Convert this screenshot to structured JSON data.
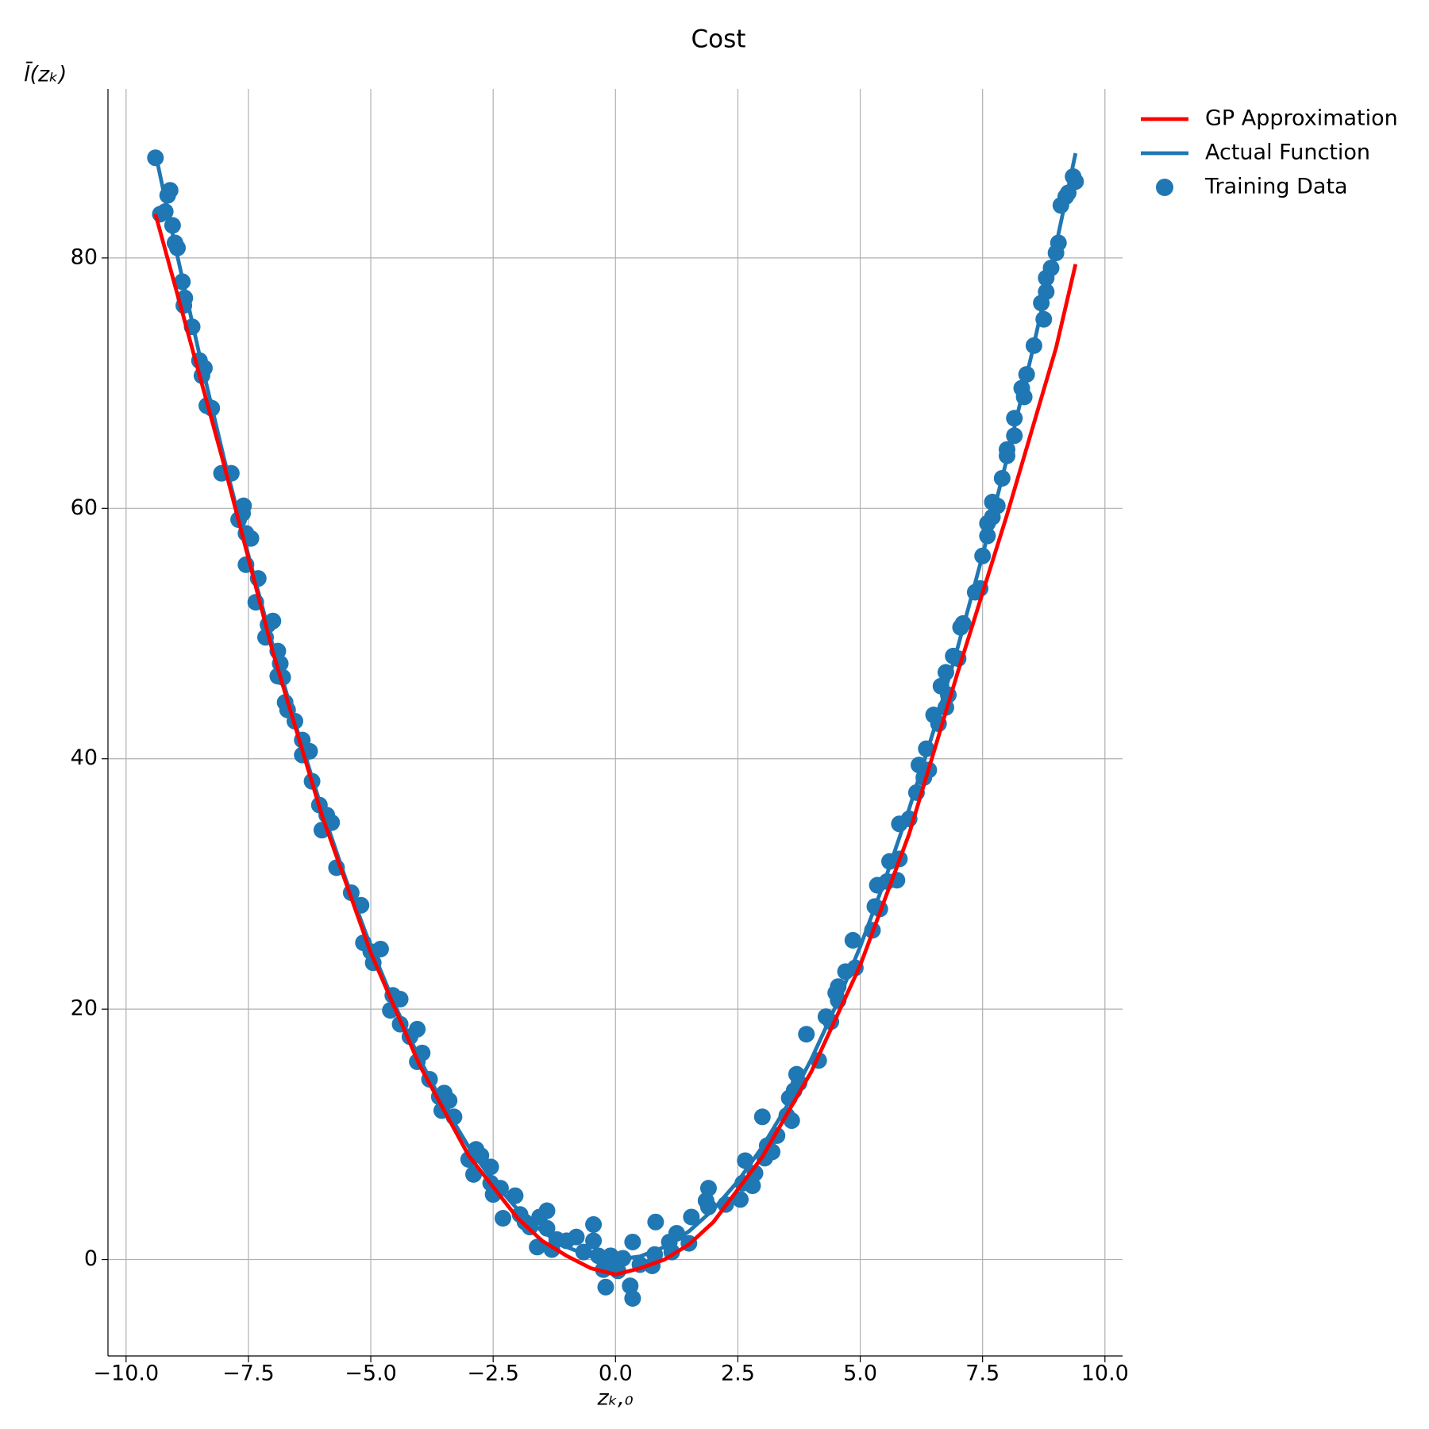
{
  "chart_data": {
    "type": "line",
    "title": "Cost",
    "xlabel": "zₖ,₀",
    "ylabel": "l̄(zₖ)",
    "xlim": [
      -10.37,
      10.36
    ],
    "ylim": [
      -7.7,
      93.5
    ],
    "xticks": [
      {
        "value": -10,
        "label": "−10.0"
      },
      {
        "value": -7.5,
        "label": "−7.5"
      },
      {
        "value": -5,
        "label": "−5.0"
      },
      {
        "value": -2.5,
        "label": "−2.5"
      },
      {
        "value": 0,
        "label": "0.0"
      },
      2.5,
      {
        "value": 5,
        "label": "5.0"
      },
      7.5,
      {
        "value": 10,
        "label": "10.0"
      }
    ],
    "yticks": [
      0,
      20,
      40,
      60,
      80
    ],
    "grid": true,
    "legend": "outside-right",
    "series": [
      {
        "name": "GP Approximation",
        "kind": "line",
        "color": "#ff0000",
        "x": [
          -9.4,
          -8,
          -7,
          -6,
          -5,
          -4,
          -3,
          -2,
          -1.5,
          -1,
          -0.5,
          0,
          0.5,
          1,
          1.5,
          2,
          3,
          4,
          5,
          6,
          7,
          8,
          9,
          9.4
        ],
        "values": [
          83.5,
          63.5,
          48.5,
          35.5,
          24.5,
          15.5,
          8.3,
          3.3,
          1.5,
          0.3,
          -0.7,
          -1.2,
          -0.7,
          0,
          1.2,
          3,
          8.2,
          15,
          23.5,
          34,
          47,
          59.5,
          72.8,
          79.5
        ]
      },
      {
        "name": "Actual Function",
        "kind": "line",
        "color": "#1f77b4",
        "x": [
          -9.4,
          -9,
          -8.5,
          -8,
          -7.5,
          -7,
          -6.5,
          -6,
          -5.5,
          -5,
          -4.5,
          -4,
          -3.5,
          -3,
          -2.5,
          -2,
          -1.5,
          -1,
          -0.5,
          0,
          0.5,
          1,
          1.5,
          2,
          2.5,
          3,
          3.5,
          4,
          4.5,
          5,
          5.5,
          6,
          6.5,
          7,
          7.5,
          8,
          8.5,
          9,
          9.4
        ],
        "values": [
          88.36,
          81,
          72.25,
          64,
          56.25,
          49,
          42.25,
          36,
          30.25,
          25,
          20.25,
          16,
          12.25,
          9,
          6.25,
          4,
          2.25,
          1,
          0.25,
          0,
          0.25,
          1,
          2.25,
          4,
          6.25,
          9,
          12.25,
          16,
          20.25,
          25,
          30.25,
          36,
          42.25,
          49,
          56.25,
          64,
          72.25,
          81,
          88.36
        ]
      },
      {
        "name": "Training Data",
        "kind": "scatter",
        "color": "#1f77b4",
        "x": [
          -9.4,
          -9.3,
          -9.2,
          -9.15,
          -9.1,
          -9.05,
          -9.0,
          -8.95,
          -8.85,
          -8.8,
          -8.82,
          -8.65,
          -8.5,
          -8.45,
          -8.4,
          -8.35,
          -8.25,
          -8.05,
          -7.85,
          -7.7,
          -7.6,
          -7.62,
          -7.55,
          -7.55,
          -7.45,
          -7.3,
          -7.35,
          -7.15,
          -7.1,
          -7.0,
          -6.9,
          -6.85,
          -6.9,
          -6.8,
          -6.75,
          -6.7,
          -6.55,
          -6.4,
          -6.4,
          -6.25,
          -6.2,
          -6.05,
          -6.0,
          -5.9,
          -5.8,
          -5.7,
          -5.4,
          -5.2,
          -5.15,
          -5.0,
          -4.95,
          -4.8,
          -4.6,
          -4.55,
          -4.4,
          -4.4,
          -4.2,
          -4.05,
          -4.05,
          -3.95,
          -3.8,
          -3.6,
          -3.55,
          -3.5,
          -3.4,
          -3.3,
          -3.0,
          -2.9,
          -2.85,
          -2.75,
          -2.55,
          -2.55,
          -2.5,
          -2.35,
          -2.3,
          -2.05,
          -1.95,
          -1.85,
          -1.75,
          -1.6,
          -1.55,
          -1.4,
          -1.4,
          -1.3,
          -1.2,
          -1.0,
          -0.8,
          -0.65,
          -0.45,
          -0.45,
          -0.35,
          -0.25,
          -0.2,
          -0.1,
          -0.05,
          0.05,
          0.15,
          0.3,
          0.35,
          0.35,
          0.5,
          0.75,
          0.8,
          0.82,
          1.1,
          1.15,
          1.25,
          1.5,
          1.55,
          1.85,
          1.9,
          1.9,
          2.25,
          2.55,
          2.6,
          2.65,
          2.8,
          2.85,
          3.0,
          3.05,
          3.1,
          3.2,
          3.3,
          3.5,
          3.55,
          3.6,
          3.65,
          3.7,
          3.75,
          3.9,
          4.15,
          4.3,
          4.4,
          4.5,
          4.55,
          4.55,
          4.7,
          4.85,
          4.9,
          5.25,
          5.3,
          5.35,
          5.4,
          5.55,
          5.6,
          5.75,
          5.8,
          5.8,
          6.0,
          6.15,
          6.2,
          6.3,
          6.4,
          6.35,
          6.5,
          6.6,
          6.65,
          6.75,
          6.8,
          6.75,
          6.9,
          7.0,
          7.05,
          7.1,
          7.35,
          7.45,
          7.5,
          7.6,
          7.6,
          7.7,
          7.7,
          7.8,
          7.9,
          8.0,
          8.0,
          8.15,
          8.15,
          8.3,
          8.35,
          8.4,
          8.55,
          8.7,
          8.75,
          8.8,
          8.8,
          8.9,
          9.0,
          9.05,
          9.1,
          9.2,
          9.25,
          9.35,
          9.4
        ],
        "values": [
          88,
          83.5,
          83.7,
          85,
          85.4,
          82.6,
          81.2,
          80.8,
          78.1,
          76.8,
          76.2,
          74.5,
          71.8,
          70.6,
          71.2,
          68.2,
          68,
          62.8,
          62.8,
          59.1,
          60.2,
          59.6,
          58.0,
          55.5,
          57.6,
          54.4,
          52.5,
          49.7,
          50.7,
          51,
          48.6,
          47.6,
          46.6,
          46.5,
          44.5,
          43.9,
          43,
          41.5,
          40.3,
          40.6,
          38.2,
          36.3,
          34.3,
          35.5,
          34.9,
          31.3,
          29.3,
          28.3,
          25.3,
          24.6,
          23.7,
          24.8,
          19.9,
          21.1,
          20.8,
          18.8,
          17.8,
          18.4,
          15.8,
          16.5,
          14.4,
          13,
          11.9,
          13.3,
          12.7,
          11.4,
          8,
          6.8,
          8.8,
          8.3,
          7.4,
          6.1,
          5.2,
          5.7,
          3.3,
          5.1,
          3.6,
          3,
          2.6,
          1,
          3.4,
          3.9,
          2.5,
          0.8,
          1.6,
          1.5,
          1.8,
          0.6,
          2.8,
          1.5,
          0.3,
          -0.8,
          -2.2,
          0.3,
          -0.3,
          -0.9,
          0.1,
          -2.1,
          -3.1,
          1.4,
          -0.4,
          -0.5,
          0.4,
          3,
          1.4,
          0.6,
          2.1,
          1.3,
          3.4,
          4.7,
          5.7,
          4.2,
          4.4,
          4.8,
          6.1,
          7.9,
          5.9,
          6.9,
          11.4,
          8.1,
          9.1,
          8.6,
          9.9,
          11.5,
          12.9,
          11.1,
          13.5,
          14.8,
          14.1,
          18,
          15.9,
          19.4,
          19,
          21.3,
          21.8,
          20.7,
          23,
          25.5,
          23.3,
          26.3,
          28.2,
          29.9,
          28,
          30.2,
          31.8,
          30.3,
          32,
          34.8,
          35.2,
          37.3,
          39.5,
          38.5,
          39.1,
          40.8,
          43.5,
          42.8,
          45.8,
          44.1,
          45.1,
          46.9,
          48.2,
          48,
          50.5,
          50.8,
          53.3,
          53.6,
          56.2,
          58.8,
          57.8,
          59.3,
          60.5,
          60.2,
          62.4,
          64.7,
          64.2,
          65.8,
          67.2,
          69.6,
          68.9,
          70.7,
          73,
          76.4,
          75.1,
          77.3,
          78.4,
          79.2,
          80.4,
          81.2,
          84.2,
          84.9,
          85.2,
          86.5,
          86.1
        ]
      }
    ]
  }
}
